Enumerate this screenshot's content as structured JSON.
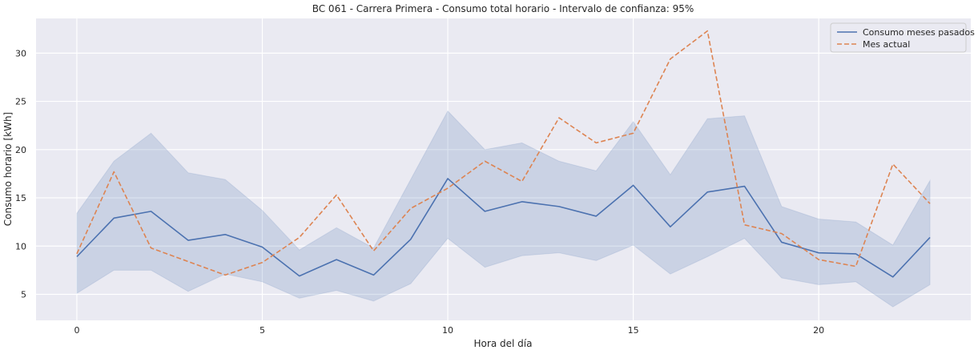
{
  "chart_data": {
    "type": "line",
    "title": "BC 061 - Carrera Primera - Consumo total horario - Intervalo de confianza: 95%",
    "xlabel": "Hora del día",
    "ylabel": "Consumo horario [kWh]",
    "xlim": [
      -1.1,
      24.1
    ],
    "ylim": [
      2.3,
      33.6
    ],
    "xticks": [
      0,
      5,
      10,
      15,
      20
    ],
    "yticks": [
      5,
      10,
      15,
      20,
      25,
      30
    ],
    "grid": true,
    "legend_position": "top-right",
    "x": [
      0,
      1,
      2,
      3,
      4,
      5,
      6,
      7,
      8,
      9,
      10,
      11,
      12,
      13,
      14,
      15,
      16,
      17,
      18,
      19,
      20,
      21,
      22,
      23
    ],
    "series": [
      {
        "name": "Consumo meses pasados",
        "style": "solid",
        "color": "#4c72b0",
        "values": [
          8.9,
          12.9,
          13.6,
          10.6,
          11.2,
          9.9,
          6.9,
          8.6,
          7.0,
          10.7,
          17.0,
          13.6,
          14.6,
          14.1,
          13.1,
          16.3,
          12.0,
          15.6,
          16.2,
          10.4,
          9.3,
          9.2,
          6.8,
          10.9
        ],
        "ci_lower": [
          5.1,
          7.5,
          7.5,
          5.3,
          7.1,
          6.3,
          4.6,
          5.4,
          4.3,
          6.1,
          10.8,
          7.8,
          9.0,
          9.3,
          8.5,
          10.1,
          7.1,
          8.9,
          10.8,
          6.7,
          6.0,
          6.3,
          3.7,
          6.0
        ],
        "ci_upper": [
          13.4,
          18.8,
          21.7,
          17.6,
          16.9,
          13.7,
          9.6,
          11.9,
          9.8,
          16.9,
          24.0,
          20.0,
          20.7,
          18.8,
          17.8,
          22.9,
          17.4,
          23.2,
          23.5,
          14.1,
          12.8,
          12.5,
          10.1,
          16.8
        ]
      },
      {
        "name": "Mes actual",
        "style": "dashed",
        "color": "#dd8452",
        "values": [
          9.2,
          17.7,
          9.8,
          8.4,
          7.0,
          8.3,
          10.9,
          15.3,
          9.5,
          13.9,
          16.0,
          18.8,
          16.7,
          23.3,
          20.7,
          21.7,
          29.4,
          32.3,
          12.2,
          11.3,
          8.6,
          7.9,
          18.5,
          14.4
        ]
      }
    ]
  }
}
